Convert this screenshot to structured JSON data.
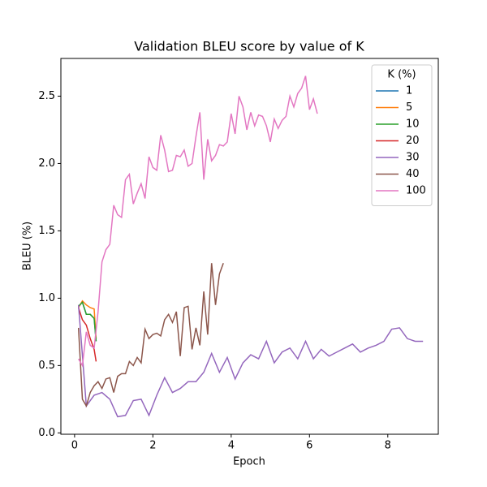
{
  "chart_data": {
    "type": "line",
    "title": "Validation BLEU score by value of K",
    "x_label": "Epoch",
    "y_label": "BLEU (%)",
    "legend_title": "K (%)",
    "legend_position": "upper right",
    "xlim": [
      -0.35,
      9.29
    ],
    "ylim": [
      -0.01,
      2.78
    ],
    "xticks": [
      0,
      2,
      4,
      6,
      8
    ],
    "yticks": [
      {
        "value": 0,
        "label": "0.0"
      },
      0.5,
      {
        "value": 1,
        "label": "1.0"
      },
      1.5,
      {
        "value": 2,
        "label": "2.0"
      },
      2.5
    ],
    "series": [
      {
        "name": "1",
        "color": "#1f77b4",
        "x": [
          0.1,
          0.2,
          0.3,
          0.4,
          0.5,
          0.55
        ],
        "values": [
          0.94,
          0.97,
          0.88,
          0.88,
          0.85,
          0.68
        ]
      },
      {
        "name": "5",
        "color": "#ff7f0e",
        "x": [
          0.1,
          0.2,
          0.3,
          0.4,
          0.5,
          0.55
        ],
        "values": [
          0.93,
          0.98,
          0.95,
          0.93,
          0.92,
          0.7
        ]
      },
      {
        "name": "10",
        "color": "#2ca02c",
        "x": [
          0.1,
          0.2,
          0.3,
          0.4,
          0.5,
          0.55
        ],
        "values": [
          0.94,
          0.97,
          0.88,
          0.88,
          0.85,
          0.68
        ]
      },
      {
        "name": "20",
        "color": "#d62728",
        "x": [
          0.1,
          0.2,
          0.3,
          0.4,
          0.5,
          0.55
        ],
        "values": [
          0.93,
          0.84,
          0.8,
          0.7,
          0.62,
          0.53
        ]
      },
      {
        "name": "30",
        "color": "#9467bd",
        "x": [
          0.1,
          0.3,
          0.5,
          0.7,
          0.9,
          1.1,
          1.3,
          1.5,
          1.7,
          1.9,
          2.1,
          2.3,
          2.5,
          2.7,
          2.9,
          3.1,
          3.3,
          3.5,
          3.7,
          3.9,
          4.1,
          4.3,
          4.5,
          4.7,
          4.9,
          5.1,
          5.3,
          5.5,
          5.7,
          5.9,
          6.1,
          6.3,
          6.5,
          6.7,
          6.9,
          7.1,
          7.3,
          7.5,
          7.7,
          7.9,
          8.1,
          8.3,
          8.5,
          8.7,
          8.9
        ],
        "values": [
          0.95,
          0.2,
          0.28,
          0.3,
          0.25,
          0.12,
          0.13,
          0.24,
          0.25,
          0.13,
          0.28,
          0.41,
          0.3,
          0.33,
          0.38,
          0.38,
          0.45,
          0.59,
          0.45,
          0.56,
          0.4,
          0.52,
          0.58,
          0.55,
          0.68,
          0.52,
          0.6,
          0.63,
          0.55,
          0.68,
          0.55,
          0.62,
          0.57,
          0.6,
          0.63,
          0.66,
          0.6,
          0.63,
          0.65,
          0.68,
          0.77,
          0.78,
          0.7,
          0.68,
          0.68
        ]
      },
      {
        "name": "40",
        "color": "#8c564b",
        "x": [
          0.1,
          0.2,
          0.3,
          0.4,
          0.5,
          0.6,
          0.7,
          0.8,
          0.9,
          1.0,
          1.1,
          1.2,
          1.3,
          1.4,
          1.5,
          1.6,
          1.7,
          1.8,
          1.9,
          2.0,
          2.1,
          2.2,
          2.3,
          2.4,
          2.5,
          2.6,
          2.7,
          2.8,
          2.9,
          3.0,
          3.1,
          3.2,
          3.3,
          3.4,
          3.5,
          3.6,
          3.7,
          3.8
        ],
        "values": [
          0.78,
          0.25,
          0.2,
          0.3,
          0.35,
          0.38,
          0.33,
          0.4,
          0.41,
          0.3,
          0.42,
          0.44,
          0.44,
          0.53,
          0.5,
          0.56,
          0.52,
          0.77,
          0.7,
          0.73,
          0.74,
          0.72,
          0.84,
          0.88,
          0.82,
          0.9,
          0.57,
          0.93,
          0.94,
          0.62,
          0.78,
          0.65,
          1.05,
          0.73,
          1.26,
          0.95,
          1.18,
          1.26
        ]
      },
      {
        "name": "100",
        "color": "#e377c2",
        "x": [
          0.1,
          0.2,
          0.3,
          0.4,
          0.5,
          0.6,
          0.7,
          0.8,
          0.9,
          1.0,
          1.1,
          1.2,
          1.3,
          1.4,
          1.5,
          1.6,
          1.7,
          1.8,
          1.9,
          2.0,
          2.1,
          2.2,
          2.3,
          2.4,
          2.5,
          2.6,
          2.7,
          2.8,
          2.9,
          3.0,
          3.1,
          3.2,
          3.3,
          3.4,
          3.5,
          3.6,
          3.7,
          3.8,
          3.9,
          4.0,
          4.1,
          4.2,
          4.3,
          4.4,
          4.5,
          4.6,
          4.7,
          4.8,
          4.9,
          5.0,
          5.1,
          5.2,
          5.3,
          5.4,
          5.5,
          5.6,
          5.7,
          5.8,
          5.9,
          6.0,
          6.1,
          6.2
        ],
        "values": [
          0.55,
          0.5,
          0.75,
          0.65,
          0.63,
          0.9,
          1.27,
          1.36,
          1.4,
          1.69,
          1.62,
          1.6,
          1.88,
          1.92,
          1.7,
          1.78,
          1.85,
          1.74,
          2.05,
          1.97,
          1.95,
          2.21,
          2.1,
          1.94,
          1.95,
          2.06,
          2.05,
          2.1,
          1.98,
          2.0,
          2.2,
          2.38,
          1.88,
          2.18,
          2.02,
          2.06,
          2.14,
          2.13,
          2.16,
          2.37,
          2.22,
          2.5,
          2.42,
          2.25,
          2.38,
          2.28,
          2.36,
          2.35,
          2.28,
          2.16,
          2.33,
          2.26,
          2.32,
          2.35,
          2.5,
          2.42,
          2.52,
          2.56,
          2.65,
          2.4,
          2.48,
          2.37
        ]
      }
    ]
  }
}
